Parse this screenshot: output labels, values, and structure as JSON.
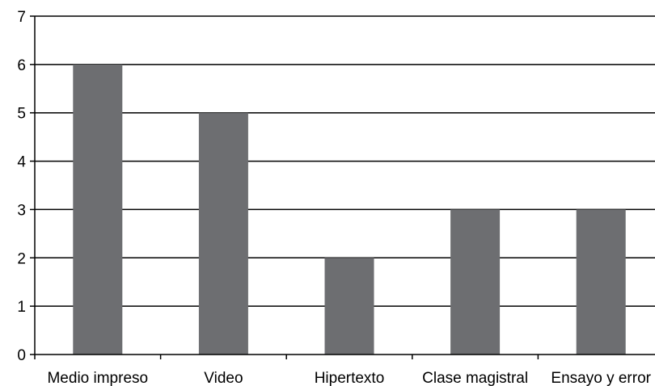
{
  "chart_data": {
    "type": "bar",
    "categories": [
      "Medio impreso",
      "Video",
      "Hipertexto",
      "Clase magistral",
      "Ensayo y error"
    ],
    "values": [
      6,
      5,
      2,
      3,
      3
    ],
    "title": "",
    "xlabel": "",
    "ylabel": "",
    "ylim": [
      0,
      7
    ],
    "yticks": [
      0,
      1,
      2,
      3,
      4,
      5,
      6,
      7
    ],
    "grid": true,
    "legend": "none",
    "bar_color": "#6d6e71",
    "grid_color": "#000000"
  }
}
